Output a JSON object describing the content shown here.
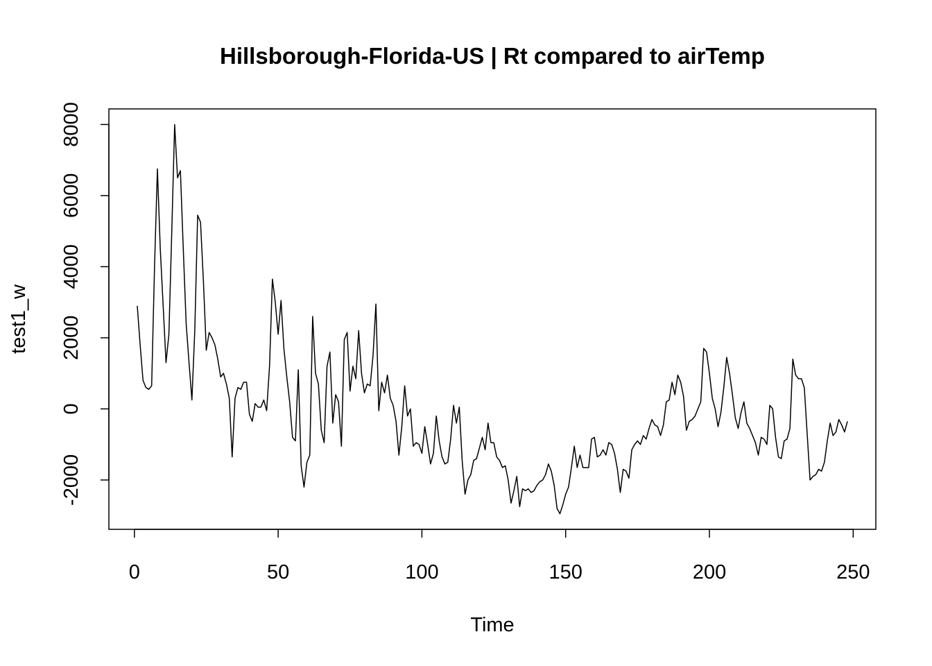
{
  "chart_data": {
    "type": "line",
    "title": "Hillsborough-Florida-US | Rt compared to airTemp",
    "xlabel": "Time",
    "ylabel": "test1_w",
    "color": "#000000",
    "x": [
      1,
      2,
      3,
      4,
      5,
      6,
      7,
      8,
      9,
      10,
      11,
      12,
      13,
      14,
      15,
      16,
      17,
      18,
      19,
      20,
      21,
      22,
      23,
      24,
      25,
      26,
      27,
      28,
      29,
      30,
      31,
      32,
      33,
      34,
      35,
      36,
      37,
      38,
      39,
      40,
      41,
      42,
      43,
      44,
      45,
      46,
      47,
      48,
      49,
      50,
      51,
      52,
      53,
      54,
      55,
      56,
      57,
      58,
      59,
      60,
      61,
      62,
      63,
      64,
      65,
      66,
      67,
      68,
      69,
      70,
      71,
      72,
      73,
      74,
      75,
      76,
      77,
      78,
      79,
      80,
      81,
      82,
      83,
      84,
      85,
      86,
      87,
      88,
      89,
      90,
      91,
      92,
      93,
      94,
      95,
      96,
      97,
      98,
      99,
      100,
      101,
      102,
      103,
      104,
      105,
      106,
      107,
      108,
      109,
      110,
      111,
      112,
      113,
      114,
      115,
      116,
      117,
      118,
      119,
      120,
      121,
      122,
      123,
      124,
      125,
      126,
      127,
      128,
      129,
      130,
      131,
      132,
      133,
      134,
      135,
      136,
      137,
      138,
      139,
      140,
      141,
      142,
      143,
      144,
      145,
      146,
      147,
      148,
      149,
      150,
      151,
      152,
      153,
      154,
      155,
      156,
      157,
      158,
      159,
      160,
      161,
      162,
      163,
      164,
      165,
      166,
      167,
      168,
      169,
      170,
      171,
      172,
      173,
      174,
      175,
      176,
      177,
      178,
      179,
      180,
      181,
      182,
      183,
      184,
      185,
      186,
      187,
      188,
      189,
      190,
      191,
      192,
      193,
      194,
      195,
      196,
      197,
      198,
      199,
      200,
      201,
      202,
      203,
      204,
      205,
      206,
      207,
      208,
      209,
      210,
      211,
      212,
      213,
      214,
      215,
      216,
      217,
      218,
      219,
      220,
      221,
      222,
      223,
      224,
      225,
      226,
      227,
      228,
      229,
      230,
      231,
      232,
      233,
      234,
      235,
      236,
      237,
      238,
      239,
      240,
      241,
      242,
      243,
      244,
      245,
      246,
      247,
      248
    ],
    "values": [
      2900,
      1800,
      800,
      600,
      550,
      650,
      4000,
      6750,
      4500,
      2900,
      1300,
      2100,
      5000,
      8000,
      6500,
      6700,
      4500,
      2400,
      1300,
      250,
      2200,
      5450,
      5250,
      3600,
      1650,
      2150,
      2000,
      1800,
      1400,
      900,
      1000,
      700,
      300,
      -1350,
      300,
      600,
      550,
      750,
      750,
      -150,
      -350,
      150,
      50,
      50,
      250,
      -50,
      1200,
      3650,
      3000,
      2100,
      3050,
      1700,
      900,
      200,
      -800,
      -900,
      1100,
      -1600,
      -2200,
      -1500,
      -1300,
      2600,
      1000,
      700,
      -600,
      -950,
      1200,
      1600,
      -400,
      400,
      200,
      -1050,
      1950,
      2150,
      500,
      1200,
      850,
      2200,
      1000,
      450,
      700,
      650,
      1500,
      2950,
      -50,
      750,
      450,
      950,
      300,
      100,
      -350,
      -1300,
      -500,
      650,
      -200,
      0,
      -1050,
      -950,
      -1000,
      -1250,
      -500,
      -1000,
      -1550,
      -1250,
      -200,
      -900,
      -1350,
      -1550,
      -1500,
      -850,
      100,
      -400,
      50,
      -1450,
      -2400,
      -2000,
      -1850,
      -1450,
      -1400,
      -1100,
      -800,
      -1150,
      -400,
      -950,
      -950,
      -1350,
      -1450,
      -1650,
      -1600,
      -2000,
      -2650,
      -2300,
      -1900,
      -2750,
      -2250,
      -2300,
      -2250,
      -2350,
      -2300,
      -2150,
      -2050,
      -2000,
      -1850,
      -1550,
      -1750,
      -2150,
      -2800,
      -2950,
      -2700,
      -2400,
      -2200,
      -1650,
      -1050,
      -1650,
      -1300,
      -1650,
      -1650,
      -1650,
      -850,
      -800,
      -1350,
      -1300,
      -1150,
      -1300,
      -950,
      -1000,
      -1250,
      -1700,
      -2350,
      -1700,
      -1750,
      -1950,
      -1150,
      -1000,
      -900,
      -1000,
      -750,
      -850,
      -550,
      -300,
      -450,
      -500,
      -750,
      -450,
      200,
      250,
      750,
      400,
      950,
      750,
      350,
      -600,
      -350,
      -300,
      -200,
      0,
      200,
      1700,
      1600,
      1000,
      300,
      0,
      -500,
      -100,
      600,
      1450,
      1000,
      400,
      -250,
      -550,
      -100,
      200,
      -400,
      -550,
      -750,
      -950,
      -1300,
      -800,
      -850,
      -1000,
      100,
      0,
      -800,
      -1350,
      -1400,
      -900,
      -850,
      -550,
      1400,
      950,
      850,
      850,
      600,
      -700,
      -2000,
      -1900,
      -1850,
      -1700,
      -1750,
      -1500,
      -900,
      -400,
      -750,
      -650,
      -300,
      -450,
      -650,
      -350
    ],
    "xlim": [
      -8.88,
      257.88
    ],
    "ylim": [
      -3388,
      8438
    ],
    "xticks": [
      0,
      50,
      100,
      150,
      200,
      250
    ],
    "yticks": [
      -2000,
      0,
      2000,
      4000,
      6000,
      8000
    ]
  }
}
